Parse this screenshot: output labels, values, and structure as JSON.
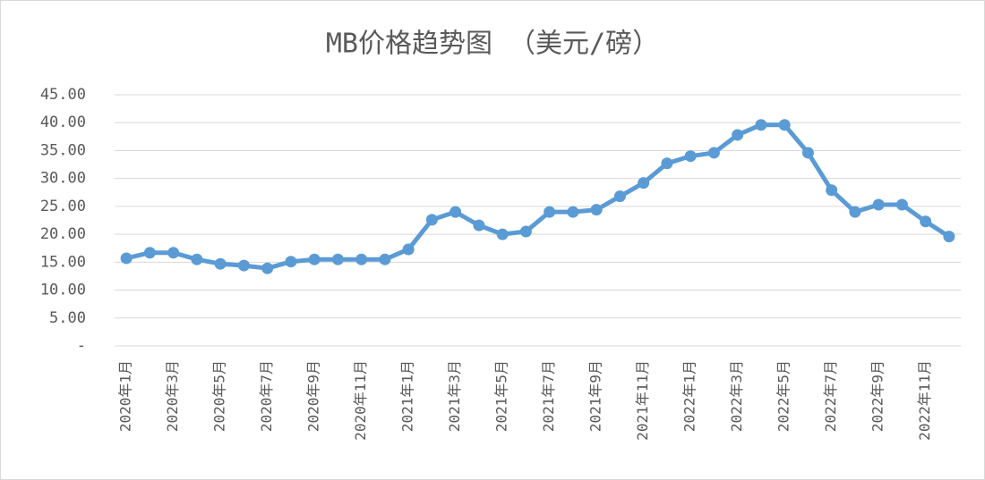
{
  "chart_data": {
    "type": "line",
    "title": "MB价格趋势图 （美元/磅）",
    "categories": [
      "2020年1月",
      null,
      "2020年3月",
      null,
      "2020年5月",
      null,
      "2020年7月",
      null,
      "2020年9月",
      null,
      "2020年11月",
      null,
      "2021年1月",
      null,
      "2021年3月",
      null,
      "2021年5月",
      null,
      "2021年7月",
      null,
      "2021年9月",
      null,
      "2021年11月",
      null,
      "2022年1月",
      null,
      "2022年3月",
      null,
      "2022年5月",
      null,
      "2022年7月",
      null,
      "2022年9月",
      null,
      "2022年11月",
      null
    ],
    "values": [
      15.7,
      16.7,
      16.7,
      15.5,
      14.7,
      14.4,
      13.9,
      15.1,
      15.5,
      15.5,
      15.5,
      15.5,
      17.3,
      22.6,
      24.0,
      21.6,
      20.0,
      20.5,
      24.0,
      24.0,
      24.4,
      26.8,
      29.2,
      32.7,
      34.0,
      34.6,
      37.8,
      39.6,
      39.6,
      34.6,
      27.9,
      24.0,
      25.3,
      25.3,
      22.3,
      19.6
    ],
    "color": "#5b9bd5",
    "ylim": [
      0,
      45
    ],
    "yticks": [
      {
        "value": 0,
        "label": "-"
      },
      {
        "value": 5,
        "label": "5.00"
      },
      {
        "value": 10,
        "label": "10.00"
      },
      {
        "value": 15,
        "label": "15.00"
      },
      {
        "value": 20,
        "label": "20.00"
      },
      {
        "value": 25,
        "label": "25.00"
      },
      {
        "value": 30,
        "label": "30.00"
      },
      {
        "value": 35,
        "label": "35.00"
      },
      {
        "value": 40,
        "label": "40.00"
      },
      {
        "value": 45,
        "label": "45.00"
      }
    ],
    "grid": true
  }
}
